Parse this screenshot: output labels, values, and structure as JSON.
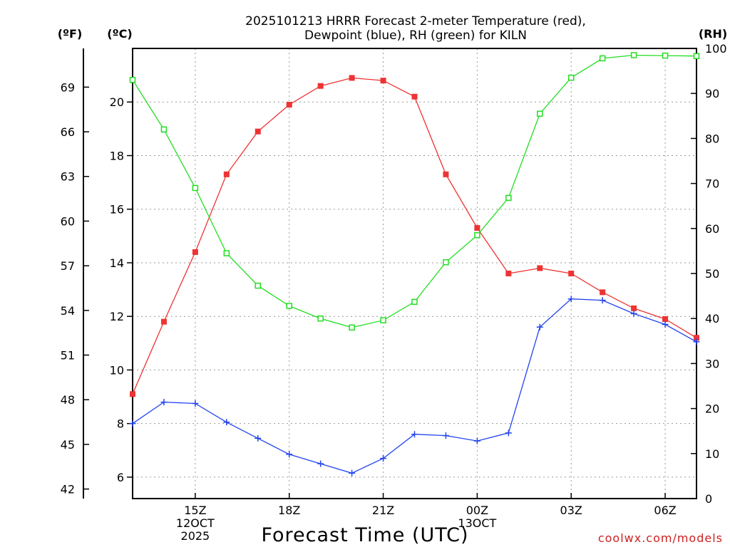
{
  "chart_data": {
    "type": "line",
    "title_lines": [
      "2025101213 HRRR Forecast 2-meter Temperature (red),",
      "Dewpoint (blue), RH (green) for KILN"
    ],
    "xlabel": "Forecast Time (UTC)",
    "credit": "coolwx.com/models",
    "units": {
      "fahrenheit": "(ºF)",
      "celsius": "(ºC)",
      "rh": "(RH)"
    },
    "x_hours": [
      13,
      14,
      15,
      16,
      17,
      18,
      19,
      20,
      21,
      22,
      23,
      24,
      25,
      26,
      27,
      28,
      29,
      30,
      31
    ],
    "xlim": [
      13,
      31
    ],
    "x_ticks": [
      {
        "hour": 15,
        "lines": [
          "15Z",
          "12OCT",
          "2025"
        ]
      },
      {
        "hour": 18,
        "lines": [
          "18Z"
        ]
      },
      {
        "hour": 21,
        "lines": [
          "21Z"
        ]
      },
      {
        "hour": 24,
        "lines": [
          "00Z",
          "13OCT"
        ]
      },
      {
        "hour": 27,
        "lines": [
          "03Z"
        ]
      },
      {
        "hour": 30,
        "lines": [
          "06Z"
        ]
      }
    ],
    "celsius_axis": {
      "ylim": [
        5.2,
        22.0
      ],
      "ticks": [
        "6",
        "8",
        "10",
        "12",
        "14",
        "16",
        "18",
        "20"
      ]
    },
    "fahrenheit_ticks": [
      "42",
      "45",
      "48",
      "51",
      "54",
      "57",
      "60",
      "63",
      "66",
      "69"
    ],
    "rh_axis": {
      "ylim": [
        0,
        100
      ],
      "ticks": [
        "0",
        "10",
        "20",
        "30",
        "40",
        "50",
        "60",
        "70",
        "80",
        "90",
        "100"
      ]
    },
    "series": [
      {
        "name": "Temperature",
        "axis": "celsius",
        "color": "#ee3333",
        "marker": "filled-square",
        "values": [
          9.1,
          11.8,
          14.4,
          17.3,
          18.9,
          19.9,
          20.6,
          20.9,
          20.8,
          20.2,
          17.3,
          15.3,
          13.6,
          13.8,
          13.6,
          12.9,
          12.3,
          11.9,
          11.2
        ]
      },
      {
        "name": "Dewpoint",
        "axis": "celsius",
        "color": "#2244ee",
        "marker": "plus",
        "values": [
          8.0,
          8.8,
          8.75,
          8.05,
          7.45,
          6.85,
          6.5,
          6.15,
          6.7,
          7.6,
          7.55,
          7.35,
          7.65,
          11.6,
          12.65,
          12.6,
          12.1,
          11.7,
          11.05
        ]
      },
      {
        "name": "RH",
        "axis": "rh",
        "color": "#22dd22",
        "marker": "open-square",
        "values": [
          93,
          82,
          69,
          54.5,
          47.3,
          42.8,
          40,
          38,
          39.6,
          43.7,
          52.5,
          58.5,
          66.8,
          85.5,
          93.5,
          97.8,
          98.5,
          98.4,
          98.3
        ]
      }
    ]
  }
}
